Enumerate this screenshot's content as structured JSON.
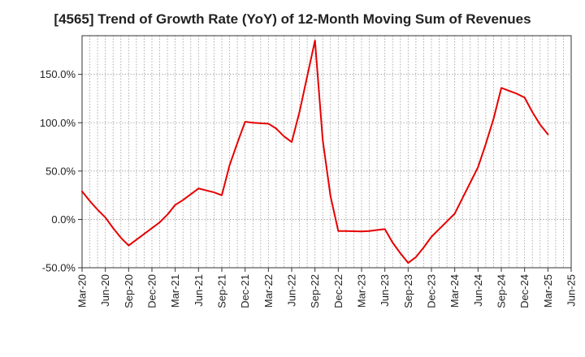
{
  "title": "[4565]  Trend of Growth Rate (YoY) of 12-Month Moving Sum of Revenues",
  "chart_data": {
    "type": "line",
    "title": "[4565]  Trend of Growth Rate (YoY) of 12-Month Moving Sum of Revenues",
    "xlabel": "",
    "ylabel": "",
    "ylim": [
      -50,
      190
    ],
    "yticks": [
      -50,
      0,
      50,
      100,
      150
    ],
    "ytick_labels": [
      "-50.0%",
      "0.0%",
      "50.0%",
      "100.0%",
      "150.0%"
    ],
    "xticks": [
      "Mar-20",
      "Jun-20",
      "Sep-20",
      "Dec-20",
      "Mar-21",
      "Jun-21",
      "Sep-21",
      "Dec-21",
      "Mar-22",
      "Jun-22",
      "Sep-22",
      "Dec-22",
      "Mar-23",
      "Jun-23",
      "Sep-23",
      "Dec-23",
      "Mar-24",
      "Jun-24",
      "Sep-24",
      "Dec-24",
      "Mar-25",
      "Jun-25"
    ],
    "grid": true,
    "line_color": "#e60000",
    "series": [
      {
        "x": [
          "Mar-20",
          "Apr-20",
          "May-20",
          "Jun-20",
          "Jul-20",
          "Aug-20",
          "Sep-20",
          "Oct-20",
          "Nov-20",
          "Dec-20",
          "Jan-21",
          "Feb-21",
          "Mar-21",
          "Apr-21",
          "May-21",
          "Jun-21",
          "Jul-21",
          "Aug-21",
          "Sep-21",
          "Oct-21",
          "Nov-21",
          "Dec-21",
          "Jan-22",
          "Feb-22",
          "Mar-22",
          "Apr-22",
          "May-22",
          "Jun-22",
          "Jul-22",
          "Aug-22",
          "Sep-22",
          "Oct-22",
          "Nov-22",
          "Dec-22",
          "Jan-23",
          "Feb-23",
          "Mar-23",
          "Apr-23",
          "May-23",
          "Jun-23",
          "Jul-23",
          "Aug-23",
          "Sep-23",
          "Oct-23",
          "Nov-23",
          "Dec-23",
          "Jan-24",
          "Feb-24",
          "Mar-24",
          "Apr-24",
          "May-24",
          "Jun-24",
          "Jul-24",
          "Aug-24",
          "Sep-24",
          "Oct-24",
          "Nov-24",
          "Dec-24",
          "Jan-25",
          "Feb-25",
          "Mar-25"
        ],
        "values": [
          29,
          19,
          10,
          2,
          -9,
          -19,
          -27,
          -21,
          -15,
          -9,
          -3,
          5,
          15,
          20,
          26,
          32,
          30,
          28,
          25,
          56,
          79,
          101,
          100,
          99.5,
          99,
          94,
          86,
          80,
          111,
          148,
          185,
          82,
          24,
          -12,
          -12,
          -12.2,
          -12.5,
          -12,
          -11,
          -10,
          -24,
          -35,
          -45,
          -39,
          -29,
          -18,
          -10,
          -2,
          6,
          22,
          38,
          54,
          78,
          104,
          136,
          133,
          130,
          126,
          111,
          98,
          88
        ]
      }
    ]
  }
}
